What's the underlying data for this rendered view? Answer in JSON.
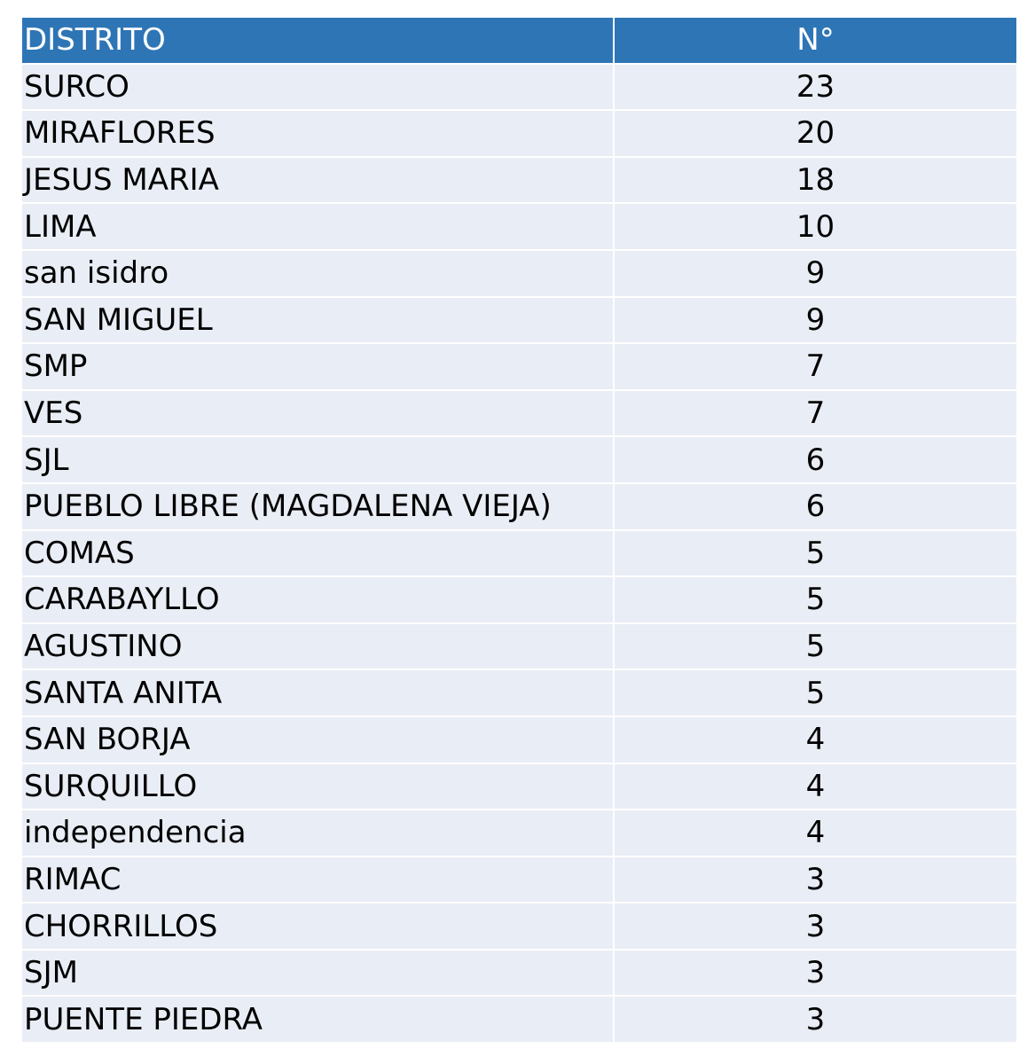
{
  "table": {
    "headers": [
      "DISTRITO",
      "N°"
    ],
    "rows": [
      {
        "distrito": "SURCO",
        "n": "23"
      },
      {
        "distrito": "MIRAFLORES",
        "n": "20"
      },
      {
        "distrito": "JESUS MARIA",
        "n": "18"
      },
      {
        "distrito": "LIMA",
        "n": "10"
      },
      {
        "distrito": "san isidro",
        "n": "9"
      },
      {
        "distrito": "SAN MIGUEL",
        "n": "9"
      },
      {
        "distrito": "SMP",
        "n": "7"
      },
      {
        "distrito": "VES",
        "n": "7"
      },
      {
        "distrito": "SJL",
        "n": "6"
      },
      {
        "distrito": "PUEBLO LIBRE (MAGDALENA VIEJA)",
        "n": "6"
      },
      {
        "distrito": "COMAS",
        "n": "5"
      },
      {
        "distrito": "CARABAYLLO",
        "n": "5"
      },
      {
        "distrito": "AGUSTINO",
        "n": "5"
      },
      {
        "distrito": "SANTA ANITA",
        "n": "5"
      },
      {
        "distrito": "SAN BORJA",
        "n": "4"
      },
      {
        "distrito": "SURQUILLO",
        "n": "4"
      },
      {
        "distrito": "independencia",
        "n": "4"
      },
      {
        "distrito": "RIMAC",
        "n": "3"
      },
      {
        "distrito": "CHORRILLOS",
        "n": "3"
      },
      {
        "distrito": "SJM",
        "n": "3"
      },
      {
        "distrito": "PUENTE PIEDRA",
        "n": "3"
      }
    ]
  },
  "colors": {
    "header_bg": "#2e75b6",
    "row_bg": "#e9edf5"
  }
}
